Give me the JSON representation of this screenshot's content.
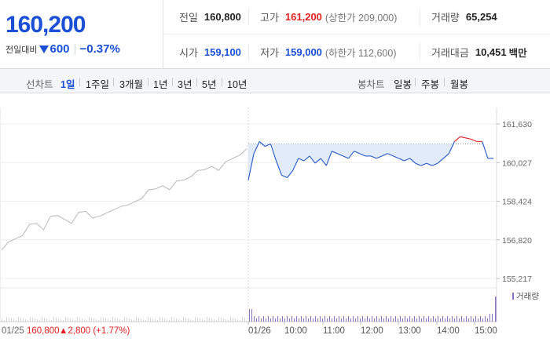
{
  "quote": {
    "current_price": "160,200",
    "change_label": "전일대비",
    "change_amount": "600",
    "change_rate": "−0.37%",
    "down_color": "#1a4fd6",
    "up_color": "#e02020"
  },
  "stats": {
    "prev_close_label": "전일",
    "prev_close": "160,800",
    "high_label": "고가",
    "high": "161,200",
    "upper_limit": "(상한가 209,000)",
    "volume_label": "거래량",
    "volume": "65,254",
    "open_label": "시가",
    "open": "159,100",
    "low_label": "저가",
    "low": "159,000",
    "lower_limit": "(하한가 112,600)",
    "amount_label": "거래대금",
    "amount": "10,451",
    "amount_unit": "백만"
  },
  "toolbar": {
    "line_chart_label": "선차트",
    "line_periods": [
      "1일",
      "1주일",
      "3개월",
      "1년",
      "3년",
      "5년",
      "10년"
    ],
    "active_period": "1일",
    "candle_chart_label": "봉차트",
    "candle_periods": [
      "일봉",
      "주봉",
      "월봉"
    ]
  },
  "chart_data": {
    "type": "line",
    "ylim": [
      155217,
      161630
    ],
    "yticks": [
      "161,630",
      "160,027",
      "158,424",
      "156,820",
      "155,217"
    ],
    "xticks": [
      "01/26",
      "10:00",
      "11:00",
      "12:00",
      "13:00",
      "14:00",
      "15:00"
    ],
    "prev_day_label": "01/25",
    "prev_day_close": "160,800",
    "prev_day_change": "▲2,800 (+1.77%)",
    "volume_legend": "거래량",
    "prev_close_ref": 160800,
    "today_series": {
      "name": "",
      "x": [
        "09:00",
        "09:05",
        "09:10",
        "09:15",
        "09:20",
        "09:25",
        "09:30",
        "09:35",
        "09:40",
        "09:45",
        "09:50",
        "09:55",
        "10:00",
        "10:10",
        "10:20",
        "10:30",
        "10:40",
        "10:50",
        "11:00",
        "11:10",
        "11:20",
        "11:30",
        "11:40",
        "11:50",
        "12:00",
        "12:10",
        "12:20",
        "12:30",
        "12:40",
        "12:50",
        "13:00",
        "13:10",
        "13:20",
        "13:30",
        "13:40",
        "13:50",
        "14:00",
        "14:10",
        "14:20",
        "14:30",
        "14:40",
        "14:50",
        "15:00",
        "15:10",
        "15:20"
      ],
      "values": [
        159300,
        160400,
        160900,
        160700,
        160800,
        160100,
        159500,
        159400,
        159700,
        160200,
        160100,
        160300,
        160000,
        160200,
        159900,
        160500,
        160400,
        160300,
        160200,
        160500,
        160400,
        160300,
        160300,
        160200,
        160300,
        160400,
        160300,
        160200,
        160100,
        160200,
        160000,
        159900,
        160000,
        159900,
        160000,
        160200,
        160400,
        160900,
        161100,
        161050,
        161000,
        160900,
        160900,
        160200,
        160200
      ]
    },
    "prev_series": {
      "name": "",
      "values": [
        156300,
        156700,
        156900,
        157100,
        157400,
        157500,
        157300,
        157700,
        157800,
        157700,
        157600,
        157900,
        158000,
        157800,
        157700,
        157900,
        158100,
        158300,
        158200,
        158400,
        158600,
        158800,
        158900,
        159100,
        159000,
        159200,
        159300,
        159500,
        159600,
        159700,
        159900,
        159800,
        160000,
        160200,
        160400,
        160500
      ]
    },
    "line_color_down": "#2457c5",
    "line_color_up": "#e02020",
    "prev_line_color": "#b8b8b8"
  }
}
